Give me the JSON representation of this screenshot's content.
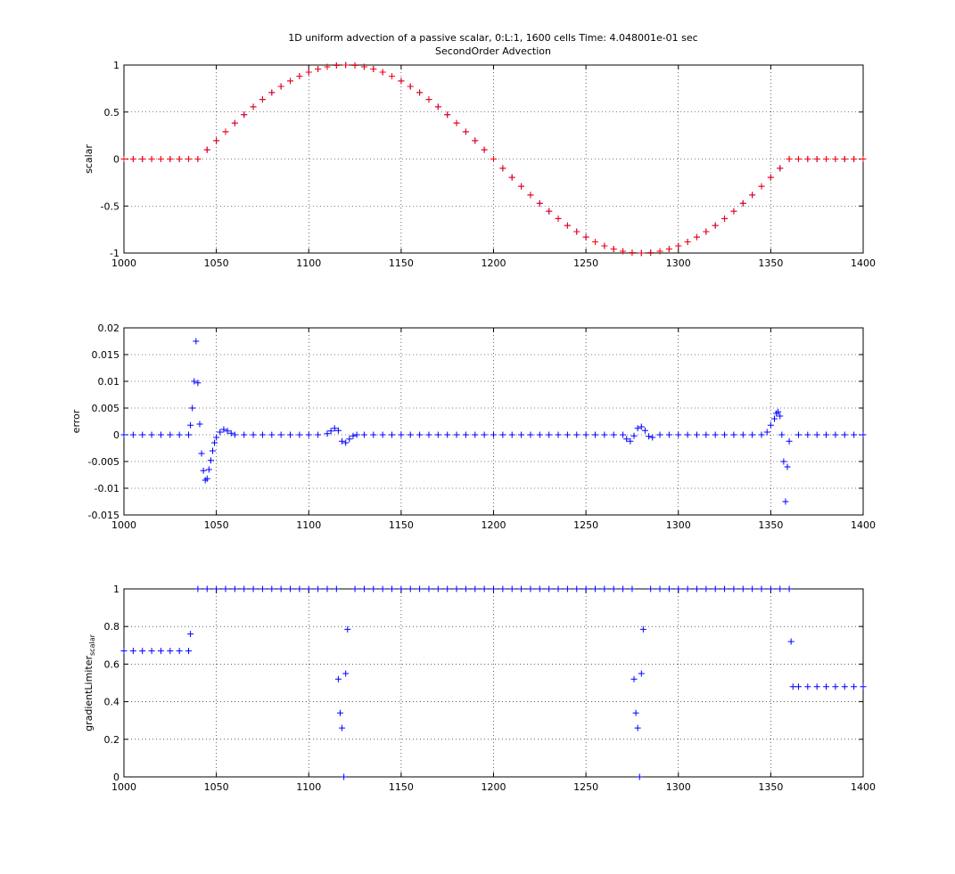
{
  "chart_data": [
    {
      "type": "scatter",
      "title": "1D uniform advection of a passive scalar, 0:L:1, 1600 cells Time: 4.048001e-01 sec",
      "subtitle": "SecondOrder Advection",
      "ylabel": "scalar",
      "grid": true,
      "marker": "plus",
      "xlim": [
        1000,
        1400
      ],
      "xticks": [
        1000,
        1050,
        1100,
        1150,
        1200,
        1250,
        1300,
        1350,
        1400
      ],
      "ylim": [
        -1,
        1
      ],
      "yticks": [
        -1,
        -0.5,
        0,
        0.5,
        1
      ],
      "x": [
        1000,
        1005,
        1010,
        1015,
        1020,
        1025,
        1030,
        1035,
        1040,
        1045,
        1050,
        1055,
        1060,
        1065,
        1070,
        1075,
        1080,
        1085,
        1090,
        1095,
        1100,
        1105,
        1110,
        1115,
        1120,
        1125,
        1130,
        1135,
        1140,
        1145,
        1150,
        1155,
        1160,
        1165,
        1170,
        1175,
        1180,
        1185,
        1190,
        1195,
        1200,
        1205,
        1210,
        1215,
        1220,
        1225,
        1230,
        1235,
        1240,
        1245,
        1250,
        1255,
        1260,
        1265,
        1270,
        1275,
        1280,
        1285,
        1290,
        1295,
        1300,
        1305,
        1310,
        1315,
        1320,
        1325,
        1330,
        1335,
        1340,
        1345,
        1350,
        1355,
        1360,
        1365,
        1370,
        1375,
        1380,
        1385,
        1390,
        1395,
        1400
      ],
      "series": [
        {
          "color": "#0000ff",
          "values": [
            0,
            0,
            0,
            0,
            0,
            0,
            0,
            0,
            0,
            0.098,
            0.195,
            0.29,
            0.383,
            0.471,
            0.556,
            0.634,
            0.707,
            0.773,
            0.831,
            0.882,
            0.924,
            0.957,
            0.981,
            0.995,
            1,
            0.995,
            0.981,
            0.957,
            0.924,
            0.882,
            0.831,
            0.773,
            0.707,
            0.634,
            0.556,
            0.471,
            0.383,
            0.29,
            0.195,
            0.098,
            0,
            -0.098,
            -0.195,
            -0.29,
            -0.383,
            -0.471,
            -0.556,
            -0.634,
            -0.707,
            -0.773,
            -0.831,
            -0.882,
            -0.924,
            -0.957,
            -0.981,
            -0.995,
            -1,
            -0.995,
            -0.981,
            -0.957,
            -0.924,
            -0.882,
            -0.831,
            -0.773,
            -0.707,
            -0.634,
            -0.556,
            -0.471,
            -0.383,
            -0.29,
            -0.195,
            -0.098,
            0,
            0,
            0,
            0,
            0,
            0,
            0,
            0,
            0
          ]
        },
        {
          "color": "#ff0000",
          "values": [
            0,
            0,
            0,
            0,
            0,
            0,
            0,
            0,
            0,
            0.098,
            0.195,
            0.29,
            0.383,
            0.471,
            0.556,
            0.634,
            0.707,
            0.773,
            0.831,
            0.882,
            0.924,
            0.957,
            0.981,
            0.995,
            1,
            0.995,
            0.981,
            0.957,
            0.924,
            0.882,
            0.831,
            0.773,
            0.707,
            0.634,
            0.556,
            0.471,
            0.383,
            0.29,
            0.195,
            0.098,
            0,
            -0.098,
            -0.195,
            -0.29,
            -0.383,
            -0.471,
            -0.556,
            -0.634,
            -0.707,
            -0.773,
            -0.831,
            -0.882,
            -0.924,
            -0.957,
            -0.981,
            -0.995,
            -1,
            -0.995,
            -0.981,
            -0.957,
            -0.924,
            -0.882,
            -0.831,
            -0.773,
            -0.707,
            -0.634,
            -0.556,
            -0.471,
            -0.383,
            -0.29,
            -0.195,
            -0.098,
            0,
            0,
            0,
            0,
            0,
            0,
            0,
            0,
            0
          ]
        }
      ]
    },
    {
      "type": "scatter",
      "ylabel": "error",
      "grid": true,
      "marker": "plus",
      "xlim": [
        1000,
        1400
      ],
      "xticks": [
        1000,
        1050,
        1100,
        1150,
        1200,
        1250,
        1300,
        1350,
        1400
      ],
      "ylim": [
        -0.015,
        0.02
      ],
      "yticks": [
        -0.015,
        -0.01,
        -0.005,
        0,
        0.005,
        0.01,
        0.015,
        0.02
      ],
      "x": [
        1000,
        1005,
        1010,
        1015,
        1020,
        1025,
        1030,
        1035,
        1036,
        1037,
        1038,
        1039,
        1040,
        1041,
        1042,
        1043,
        1044,
        1045,
        1046,
        1047,
        1048,
        1049,
        1050,
        1052,
        1054,
        1056,
        1058,
        1060,
        1065,
        1070,
        1075,
        1080,
        1085,
        1090,
        1095,
        1100,
        1105,
        1110,
        1112,
        1114,
        1116,
        1118,
        1120,
        1122,
        1124,
        1126,
        1130,
        1135,
        1140,
        1145,
        1150,
        1155,
        1160,
        1165,
        1170,
        1175,
        1180,
        1185,
        1190,
        1195,
        1200,
        1205,
        1210,
        1215,
        1220,
        1225,
        1230,
        1235,
        1240,
        1245,
        1250,
        1255,
        1260,
        1265,
        1270,
        1272,
        1274,
        1276,
        1278,
        1280,
        1282,
        1284,
        1286,
        1290,
        1295,
        1300,
        1305,
        1310,
        1315,
        1320,
        1325,
        1330,
        1335,
        1340,
        1345,
        1348,
        1350,
        1352,
        1353,
        1354,
        1355,
        1356,
        1357,
        1358,
        1359,
        1360,
        1365,
        1370,
        1375,
        1380,
        1385,
        1390,
        1395,
        1400
      ],
      "series": [
        {
          "color": "#0000ff",
          "values": [
            0,
            0,
            0,
            0,
            0,
            0,
            0,
            0,
            0.0018,
            0.005,
            0.01,
            0.0175,
            0.0097,
            0.002,
            -0.0035,
            -0.0067,
            -0.0085,
            -0.0082,
            -0.0065,
            -0.0048,
            -0.003,
            -0.0015,
            -0.0005,
            0.0005,
            0.001,
            0.0007,
            0.0003,
            0,
            0,
            0,
            0,
            0,
            0,
            0,
            0,
            0,
            0,
            0.0002,
            0.0007,
            0.0012,
            0.0008,
            -0.0012,
            -0.0015,
            -0.0008,
            -0.0002,
            0,
            0,
            0,
            0,
            0,
            0,
            0,
            0,
            0,
            0,
            0,
            0,
            0,
            0,
            0,
            0,
            0,
            0,
            0,
            0,
            0,
            0,
            0,
            0,
            0,
            0,
            0,
            0,
            0,
            0,
            -0.0008,
            -0.0012,
            -0.0002,
            0.0012,
            0.0015,
            0.0008,
            -0.0003,
            -0.0005,
            0,
            0,
            0,
            0,
            0,
            0,
            0,
            0,
            0,
            0,
            0,
            0,
            0.0005,
            0.0018,
            0.003,
            0.004,
            0.0043,
            0.0035,
            0,
            -0.005,
            -0.0125,
            -0.006,
            -0.0012,
            0,
            0,
            0,
            0,
            0,
            0,
            0,
            0
          ]
        }
      ]
    },
    {
      "type": "scatter",
      "ylabel": "gradientLimiter",
      "ylabel_subscript": "scalar",
      "grid": true,
      "marker": "plus",
      "xlim": [
        1000,
        1400
      ],
      "xticks": [
        1000,
        1050,
        1100,
        1150,
        1200,
        1250,
        1300,
        1350,
        1400
      ],
      "ylim": [
        0,
        1
      ],
      "yticks": [
        0,
        0.2,
        0.4,
        0.6,
        0.8,
        1
      ],
      "x": [
        1000,
        1005,
        1010,
        1015,
        1020,
        1025,
        1030,
        1035,
        1036,
        1040,
        1045,
        1050,
        1055,
        1060,
        1065,
        1070,
        1075,
        1080,
        1085,
        1090,
        1095,
        1100,
        1105,
        1110,
        1115,
        1116,
        1117,
        1118,
        1119,
        1120,
        1121,
        1125,
        1130,
        1135,
        1140,
        1145,
        1150,
        1155,
        1160,
        1165,
        1170,
        1175,
        1180,
        1185,
        1190,
        1195,
        1200,
        1205,
        1210,
        1215,
        1220,
        1225,
        1230,
        1235,
        1240,
        1245,
        1250,
        1255,
        1260,
        1265,
        1270,
        1275,
        1276,
        1277,
        1278,
        1279,
        1280,
        1281,
        1285,
        1290,
        1295,
        1300,
        1305,
        1310,
        1315,
        1320,
        1325,
        1330,
        1335,
        1340,
        1345,
        1350,
        1355,
        1360,
        1361,
        1362,
        1365,
        1370,
        1375,
        1380,
        1385,
        1390,
        1395,
        1400
      ],
      "series": [
        {
          "color": "#0000ff",
          "values": [
            0.67,
            0.67,
            0.67,
            0.67,
            0.67,
            0.67,
            0.67,
            0.67,
            0.76,
            1,
            1,
            1,
            1,
            1,
            1,
            1,
            1,
            1,
            1,
            1,
            1,
            1,
            1,
            1,
            1,
            0.52,
            0.34,
            0.26,
            0,
            0.55,
            0.785,
            1,
            1,
            1,
            1,
            1,
            1,
            1,
            1,
            1,
            1,
            1,
            1,
            1,
            1,
            1,
            1,
            1,
            1,
            1,
            1,
            1,
            1,
            1,
            1,
            1,
            1,
            1,
            1,
            1,
            1,
            1,
            0.52,
            0.34,
            0.26,
            0,
            0.55,
            0.785,
            1,
            1,
            1,
            1,
            1,
            1,
            1,
            1,
            1,
            1,
            1,
            1,
            1,
            1,
            1,
            1,
            0.72,
            0.48,
            0.48,
            0.48,
            0.48,
            0.48,
            0.48,
            0.48,
            0.48,
            0.48
          ]
        }
      ]
    }
  ]
}
